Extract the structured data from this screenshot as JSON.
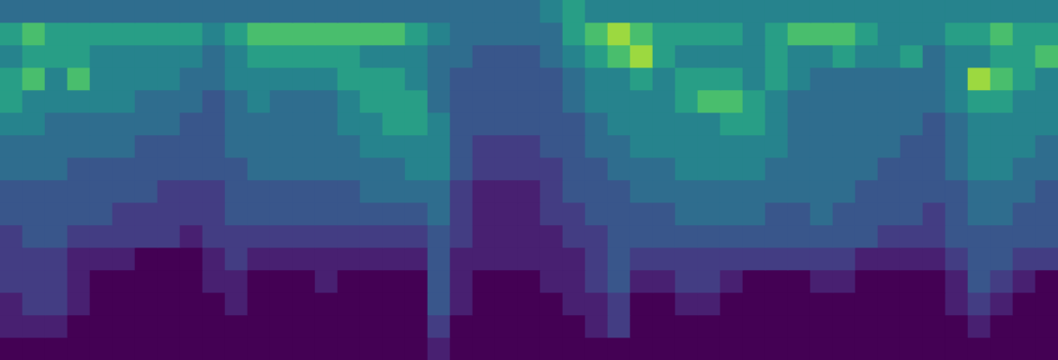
{
  "chart_data": {
    "type": "heatmap",
    "tick_labels": false,
    "grid": false,
    "zlim": [
      0,
      9
    ],
    "columns": [
      [
        4,
        6,
        5,
        6,
        6,
        5,
        4,
        4,
        3,
        3,
        2,
        2,
        2,
        1,
        1,
        0
      ],
      [
        4,
        7,
        6,
        7,
        5,
        5,
        4,
        4,
        3,
        3,
        3,
        2,
        2,
        2,
        1,
        0
      ],
      [
        4,
        6,
        6,
        5,
        5,
        4,
        4,
        4,
        3,
        3,
        3,
        2,
        2,
        2,
        1,
        0
      ],
      [
        4,
        6,
        6,
        7,
        5,
        4,
        4,
        3,
        3,
        3,
        2,
        1,
        1,
        1,
        0,
        0
      ],
      [
        4,
        6,
        5,
        5,
        5,
        4,
        4,
        3,
        3,
        3,
        2,
        1,
        0,
        0,
        0,
        0
      ],
      [
        4,
        6,
        5,
        5,
        5,
        4,
        4,
        3,
        3,
        2,
        2,
        1,
        0,
        0,
        0,
        0
      ],
      [
        4,
        6,
        5,
        5,
        4,
        4,
        3,
        3,
        3,
        2,
        2,
        0,
        0,
        0,
        0,
        0
      ],
      [
        4,
        6,
        5,
        5,
        4,
        4,
        3,
        3,
        2,
        2,
        2,
        0,
        0,
        0,
        0,
        0
      ],
      [
        4,
        6,
        5,
        4,
        4,
        3,
        3,
        3,
        2,
        2,
        1,
        0,
        0,
        0,
        0,
        0
      ],
      [
        4,
        5,
        4,
        4,
        3,
        3,
        3,
        3,
        2,
        2,
        2,
        1,
        1,
        0,
        0,
        0
      ],
      [
        4,
        6,
        5,
        5,
        4,
        4,
        4,
        3,
        3,
        3,
        2,
        2,
        1,
        1,
        0,
        0
      ],
      [
        4,
        7,
        6,
        5,
        5,
        4,
        4,
        4,
        3,
        3,
        2,
        1,
        0,
        0,
        0,
        0
      ],
      [
        4,
        7,
        6,
        5,
        4,
        4,
        4,
        4,
        3,
        3,
        2,
        1,
        0,
        0,
        0,
        0
      ],
      [
        4,
        7,
        6,
        5,
        4,
        4,
        4,
        4,
        3,
        3,
        2,
        1,
        0,
        0,
        0,
        0
      ],
      [
        4,
        7,
        6,
        5,
        4,
        4,
        4,
        4,
        3,
        3,
        2,
        1,
        1,
        0,
        0,
        0
      ],
      [
        4,
        7,
        6,
        6,
        5,
        5,
        4,
        4,
        3,
        3,
        2,
        1,
        0,
        0,
        0,
        0
      ],
      [
        4,
        7,
        5,
        6,
        6,
        5,
        5,
        4,
        4,
        3,
        2,
        1,
        0,
        0,
        0,
        0
      ],
      [
        4,
        7,
        5,
        6,
        6,
        6,
        5,
        4,
        4,
        3,
        2,
        1,
        0,
        0,
        0,
        0
      ],
      [
        4,
        6,
        5,
        5,
        6,
        6,
        5,
        5,
        4,
        3,
        2,
        1,
        0,
        0,
        0,
        0
      ],
      [
        4,
        5,
        4,
        4,
        4,
        5,
        5,
        5,
        4,
        4,
        3,
        3,
        3,
        3,
        2,
        1
      ],
      [
        4,
        4,
        4,
        3,
        3,
        3,
        3,
        3,
        2,
        2,
        2,
        1,
        1,
        1,
        0,
        0
      ],
      [
        4,
        4,
        3,
        3,
        3,
        3,
        2,
        2,
        1,
        1,
        1,
        1,
        0,
        0,
        0,
        0
      ],
      [
        4,
        4,
        3,
        3,
        3,
        3,
        2,
        2,
        1,
        1,
        1,
        1,
        0,
        0,
        0,
        0
      ],
      [
        4,
        4,
        3,
        3,
        3,
        3,
        2,
        2,
        1,
        1,
        1,
        1,
        0,
        0,
        0,
        0
      ],
      [
        5,
        4,
        4,
        3,
        3,
        3,
        3,
        2,
        2,
        2,
        1,
        1,
        1,
        0,
        0,
        0
      ],
      [
        6,
        6,
        5,
        4,
        4,
        3,
        3,
        3,
        3,
        2,
        2,
        1,
        1,
        1,
        0,
        0
      ],
      [
        5,
        7,
        6,
        5,
        5,
        4,
        4,
        3,
        3,
        3,
        2,
        2,
        2,
        1,
        1,
        0
      ],
      [
        5,
        8,
        7,
        5,
        5,
        5,
        4,
        4,
        3,
        3,
        3,
        3,
        3,
        2,
        2,
        0
      ],
      [
        5,
        7,
        8,
        6,
        5,
        5,
        5,
        4,
        4,
        3,
        3,
        2,
        1,
        0,
        0,
        0
      ],
      [
        5,
        6,
        6,
        5,
        5,
        5,
        5,
        4,
        4,
        3,
        3,
        2,
        1,
        0,
        0,
        0
      ],
      [
        5,
        6,
        5,
        6,
        6,
        5,
        5,
        5,
        4,
        4,
        3,
        2,
        2,
        1,
        0,
        0
      ],
      [
        5,
        6,
        5,
        6,
        7,
        5,
        5,
        5,
        4,
        4,
        3,
        2,
        2,
        1,
        0,
        0
      ],
      [
        5,
        6,
        5,
        6,
        7,
        6,
        5,
        5,
        4,
        4,
        3,
        2,
        1,
        0,
        0,
        0
      ],
      [
        5,
        5,
        5,
        5,
        6,
        6,
        5,
        5,
        4,
        4,
        3,
        2,
        0,
        0,
        0,
        0
      ],
      [
        5,
        6,
        6,
        6,
        5,
        5,
        5,
        4,
        4,
        3,
        3,
        2,
        0,
        0,
        0,
        0
      ],
      [
        5,
        7,
        5,
        5,
        4,
        4,
        4,
        4,
        4,
        3,
        3,
        2,
        0,
        0,
        0,
        0
      ],
      [
        5,
        7,
        5,
        4,
        4,
        4,
        4,
        4,
        4,
        4,
        3,
        2,
        1,
        0,
        0,
        0
      ],
      [
        5,
        7,
        6,
        4,
        4,
        4,
        4,
        4,
        4,
        3,
        3,
        2,
        1,
        0,
        0,
        0
      ],
      [
        5,
        6,
        5,
        4,
        4,
        4,
        4,
        4,
        3,
        3,
        3,
        1,
        0,
        0,
        0,
        0
      ],
      [
        5,
        5,
        5,
        4,
        4,
        4,
        4,
        3,
        3,
        3,
        2,
        1,
        0,
        0,
        0,
        0
      ],
      [
        5,
        5,
        6,
        4,
        4,
        4,
        3,
        3,
        3,
        3,
        2,
        1,
        0,
        0,
        0,
        0
      ],
      [
        5,
        5,
        4,
        4,
        4,
        3,
        3,
        3,
        3,
        2,
        2,
        1,
        0,
        0,
        0,
        0
      ],
      [
        5,
        6,
        5,
        5,
        5,
        4,
        4,
        4,
        3,
        3,
        3,
        2,
        1,
        1,
        0,
        0
      ],
      [
        5,
        6,
        5,
        8,
        6,
        5,
        5,
        5,
        4,
        4,
        3,
        3,
        3,
        2,
        1,
        0
      ],
      [
        5,
        7,
        6,
        7,
        6,
        5,
        5,
        5,
        4,
        4,
        3,
        3,
        2,
        1,
        0,
        0
      ],
      [
        5,
        6,
        6,
        6,
        5,
        5,
        5,
        4,
        4,
        3,
        3,
        2,
        1,
        0,
        0,
        0
      ],
      [
        5,
        6,
        7,
        5,
        5,
        5,
        4,
        4,
        3,
        3,
        3,
        2,
        0,
        0,
        0,
        0
      ]
    ]
  }
}
